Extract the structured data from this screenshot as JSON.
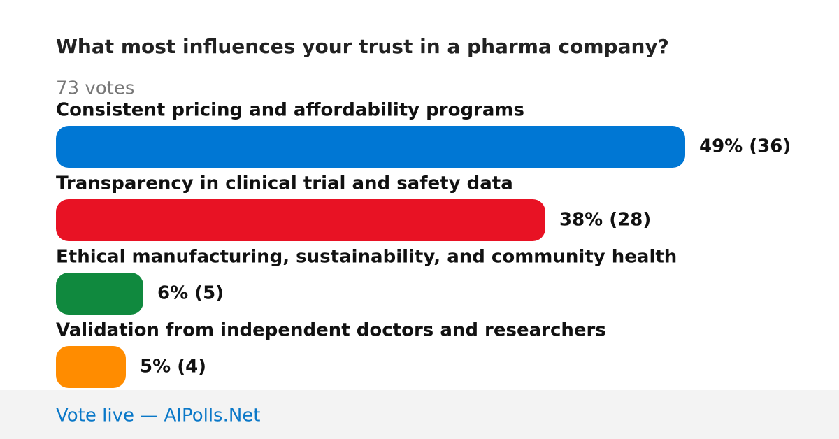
{
  "chart_data": {
    "type": "bar",
    "orientation": "horizontal",
    "title": "What most influences your trust in a pharma company?",
    "subtitle": "73 votes",
    "categories": [
      "Consistent pricing and affordability programs",
      "Transparency in clinical trial and safety data",
      "Ethical manufacturing, sustainability, and community health",
      "Validation from independent doctors and researchers"
    ],
    "values": [
      36,
      28,
      5,
      4
    ],
    "value_labels": [
      "49% (36)",
      "38% (28)",
      "6% (5)",
      "5% (4)"
    ],
    "colors": [
      "#0077d4",
      "#e81224",
      "#10893e",
      "#ff8c00"
    ],
    "footer": "Vote live — AIPolls.Net"
  }
}
